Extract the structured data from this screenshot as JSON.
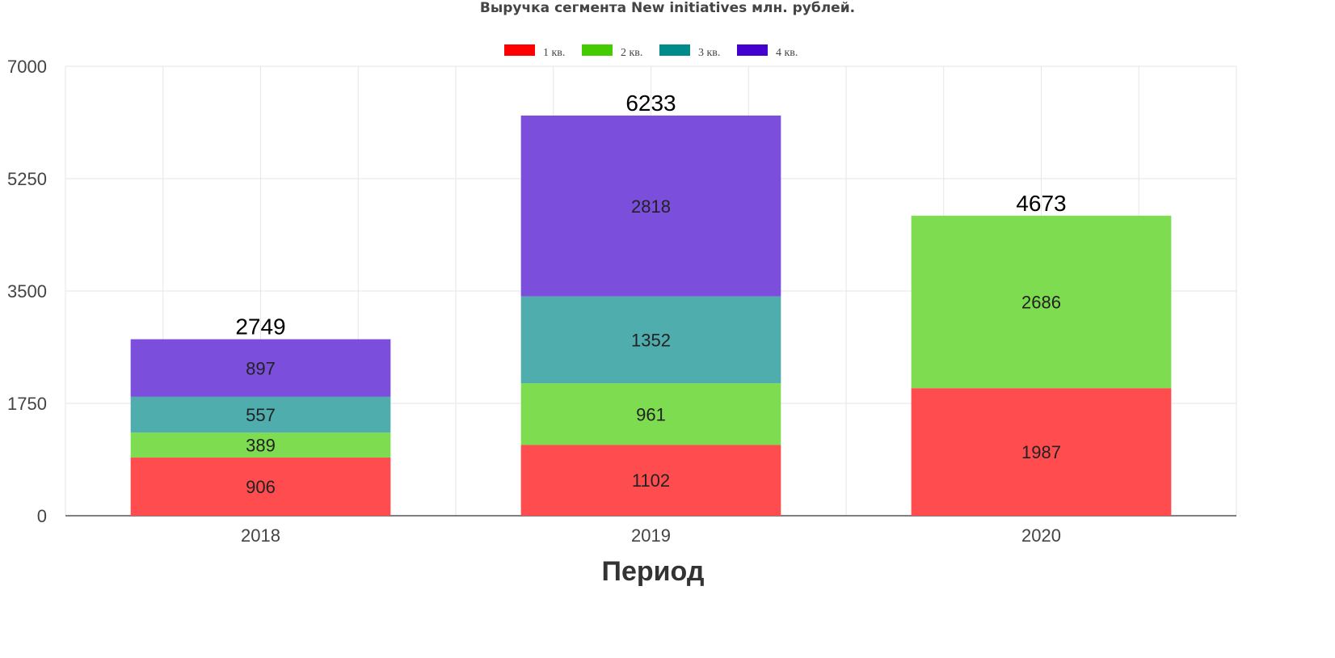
{
  "chart_data": {
    "type": "bar",
    "stacked": true,
    "title": "Выручка сегмента New initiatives млн. рублей.",
    "xlabel": "Период",
    "ylabel": "",
    "categories": [
      "2018",
      "2019",
      "2020"
    ],
    "ylim": [
      0,
      7000
    ],
    "yticks": [
      "0",
      "1750",
      "3500",
      "5250",
      "7000"
    ],
    "grid": true,
    "legend_position": "top",
    "legend_swatch_colors": [
      "#ff0000",
      "#44cc00",
      "#008b8b",
      "#4400cc"
    ],
    "series": [
      {
        "name": "1 кв.",
        "values": [
          906,
          1102,
          1987
        ],
        "labels": [
          "906",
          "1102",
          "1987"
        ],
        "color": "#ff4d4f"
      },
      {
        "name": "2 кв.",
        "values": [
          389,
          961,
          2686
        ],
        "labels": [
          "389",
          "961",
          "2686"
        ],
        "color": "#7ddc4f"
      },
      {
        "name": "3 кв.",
        "values": [
          557,
          1352,
          0
        ],
        "labels": [
          "557",
          "1352",
          ""
        ],
        "color": "#4fadae"
      },
      {
        "name": "4 кв.",
        "values": [
          897,
          2818,
          0
        ],
        "labels": [
          "897",
          "2818",
          ""
        ],
        "color": "#7b4fdc"
      }
    ],
    "totals": [
      "2749",
      "6233",
      "4673"
    ]
  }
}
